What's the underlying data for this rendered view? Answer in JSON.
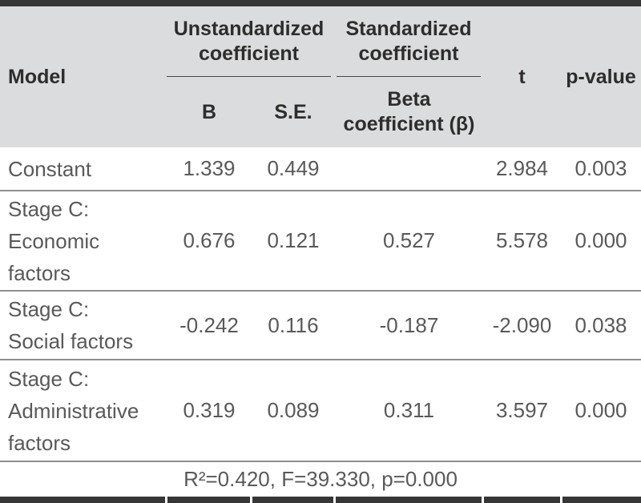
{
  "table": {
    "header": {
      "model": "Model",
      "unstandardized": [
        "Unstandardized",
        "coefficient"
      ],
      "standardized": [
        "Standardized",
        "coefficient"
      ],
      "b": "B",
      "se": "S.E.",
      "beta": [
        "Beta",
        "coefficient (β)"
      ],
      "t": "t",
      "p_value": "p-value"
    },
    "rows": [
      {
        "model": [
          "Constant"
        ],
        "b": "1.339",
        "se": "0.449",
        "beta": "",
        "t": "2.984",
        "p_value": "0.003"
      },
      {
        "model": [
          "Stage C:",
          "Economic",
          "factors"
        ],
        "b": "0.676",
        "se": "0.121",
        "beta": "0.527",
        "t": "5.578",
        "p_value": "0.000"
      },
      {
        "model": [
          "Stage C:",
          "Social factors"
        ],
        "b": "-0.242",
        "se": "0.116",
        "beta": "-0.187",
        "t": "-2.090",
        "p_value": "0.038"
      },
      {
        "model": [
          "Stage C:",
          "Administrative",
          "factors"
        ],
        "b": "0.319",
        "se": "0.089",
        "beta": "0.311",
        "t": "3.597",
        "p_value": "0.000"
      }
    ],
    "footer": {
      "summary": "R²=0.420, F=39.330, p=0.000"
    }
  },
  "colors": {
    "rule_dark": "#363636",
    "header_bg": "#dbdcdd",
    "header_text": "#2d2d2d",
    "body_text": "#595959",
    "separator_line": "#8f8f8f"
  }
}
